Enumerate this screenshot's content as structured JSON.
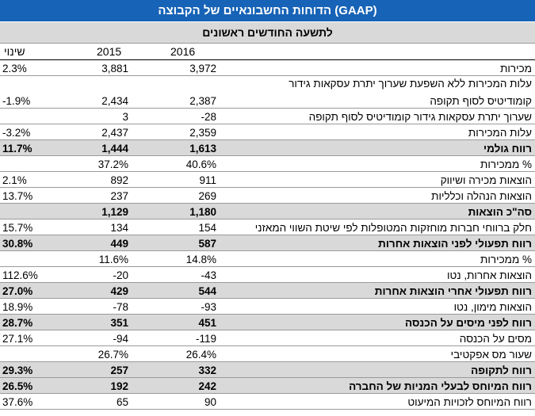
{
  "title": "הדוחות החשבונאיים של הקבוצה (GAAP)",
  "subtitle": "לתשעה החודשים ראשונים",
  "columns": {
    "change": "שינוי",
    "y2015": "2015",
    "y2016": "2016"
  },
  "rows": [
    {
      "label": "מכירות",
      "y2016": "3,972",
      "y2015": "3,881",
      "change": "2.3%"
    },
    {
      "label": "עלות המכירות ללא השפעת שערוך יתרת עסקאות גידור",
      "label2": "קומודיטיס לסוף תקופה",
      "y2016": "2,387",
      "y2015": "2,434",
      "change": "-1.9%"
    },
    {
      "label": "שערוך יתרת עסקאות גידור קומודיטיס לסוף תקופה",
      "y2016": "-28",
      "y2015": "3",
      "change": ""
    },
    {
      "label": "עלות המכירות",
      "y2016": "2,359",
      "y2015": "2,437",
      "change": "-3.2%"
    },
    {
      "label": "רווח גולמי",
      "y2016": "1,613",
      "y2015": "1,444",
      "change": "11.7%"
    },
    {
      "label": "% ממכירות",
      "y2016": "40.6%",
      "y2015": "37.2%",
      "change": ""
    },
    {
      "label": "הוצאות מכירה ושיווק",
      "y2016": "911",
      "y2015": "892",
      "change": "2.1%"
    },
    {
      "label": "הוצאות הנהלה וכלליות",
      "y2016": "269",
      "y2015": "237",
      "change": "13.7%"
    },
    {
      "label": "סה\"כ הוצאות",
      "y2016": "1,180",
      "y2015": "1,129",
      "change": ""
    },
    {
      "label": "חלק ברווחי חברות מוחזקות המטופלות לפי שיטת השווי המאזני",
      "y2016": "154",
      "y2015": "134",
      "change": "15.7%"
    },
    {
      "label": "רווח תפעולי לפני הוצאות אחרות",
      "y2016": "587",
      "y2015": "449",
      "change": "30.8%"
    },
    {
      "label": "% ממכירות",
      "y2016": "14.8%",
      "y2015": "11.6%",
      "change": ""
    },
    {
      "label": "הוצאות אחרות, נטו",
      "y2016": "-43",
      "y2015": "-20",
      "change": "112.6%"
    },
    {
      "label": "רווח תפעולי אחרי הוצאות אחרות",
      "y2016": "544",
      "y2015": "429",
      "change": "27.0%"
    },
    {
      "label": "הוצאות מימון, נטו",
      "y2016": "-93",
      "y2015": "-78",
      "change": "18.9%"
    },
    {
      "label": "רווח לפני מיסים על הכנסה",
      "y2016": "451",
      "y2015": "351",
      "change": "28.7%"
    },
    {
      "label": "מסים על הכנסה",
      "y2016": "-119",
      "y2015": "-94",
      "change": "27.1%"
    },
    {
      "label": "שעור מס אפקטיבי",
      "y2016": "26.4%",
      "y2015": "26.7%",
      "change": ""
    },
    {
      "label": "רווח לתקופה",
      "y2016": "332",
      "y2015": "257",
      "change": "29.3%"
    },
    {
      "label": "רווח המיוחס לבעלי המניות של החברה",
      "y2016": "242",
      "y2015": "192",
      "change": "26.5%"
    },
    {
      "label": "רווח המיוחס לזכויות המיעוט",
      "y2016": "90",
      "y2015": "65",
      "change": "37.6%"
    }
  ]
}
